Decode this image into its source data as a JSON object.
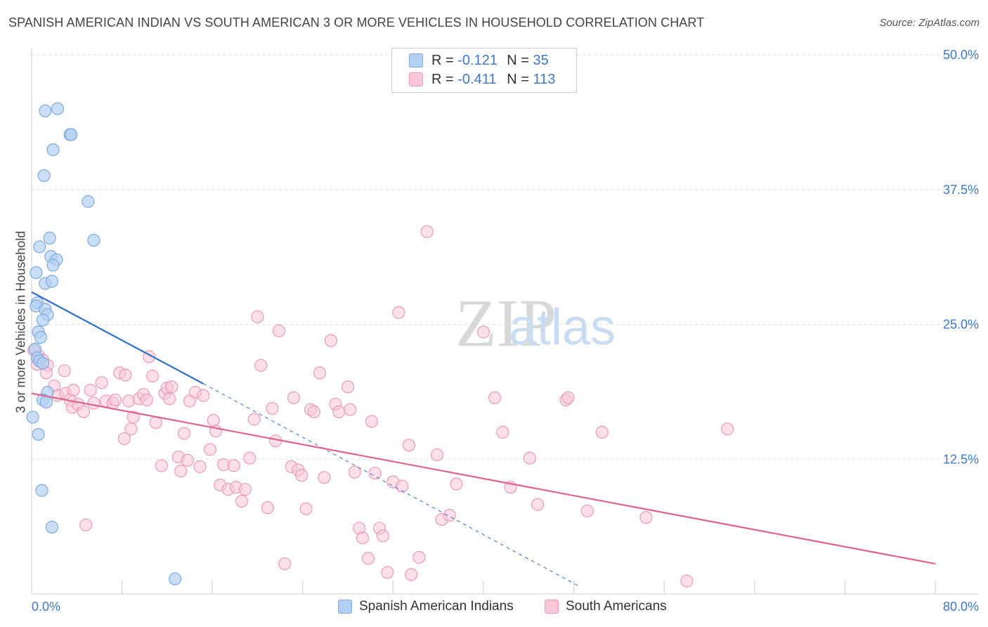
{
  "title": "SPANISH AMERICAN INDIAN VS SOUTH AMERICAN 3 OR MORE VEHICLES IN HOUSEHOLD CORRELATION CHART",
  "source": "Source: ZipAtlas.com",
  "watermark": {
    "zip": "ZIP",
    "atlas": "atlas"
  },
  "legend": {
    "r_label": "R =",
    "n_label": "N =",
    "rows": [
      {
        "r": "-0.121",
        "n": "35"
      },
      {
        "r": "-0.411",
        "n": "113"
      }
    ]
  },
  "bottom_legend": [
    "Spanish American Indians",
    "South Americans"
  ],
  "colors": {
    "blue_fill": "#b3d0f2",
    "blue_stroke": "#7fa9df",
    "blue_line": "#2e6fcc",
    "pink_fill": "#f8c6d5",
    "pink_stroke": "#eb9bb6",
    "pink_line": "#e0618e",
    "axis_text": "#3f78c6"
  },
  "chart_data": {
    "type": "scatter",
    "xlabel": "",
    "ylabel": "3 or more Vehicles in Household",
    "xlim": [
      0,
      80
    ],
    "ylim": [
      0,
      50
    ],
    "x_tick_labels": [
      "0.0%",
      "80.0%"
    ],
    "y_ticks": [
      12.5,
      25.0,
      37.5,
      50.0
    ],
    "y_tick_labels": [
      "12.5%",
      "25.0%",
      "37.5%",
      "50.0%"
    ],
    "grid": true,
    "series": [
      {
        "name": "Spanish American Indians",
        "r": -0.121,
        "n": 35,
        "trend": {
          "x0": 0,
          "y0": 28.0,
          "x1": 15.2,
          "y1": 19.5,
          "dashed_to_x": 48.5,
          "dashed_to_y": 0.7
        },
        "points": [
          [
            1.2,
            44.8
          ],
          [
            2.3,
            45.0
          ],
          [
            3.4,
            42.6
          ],
          [
            3.5,
            42.6
          ],
          [
            1.9,
            41.2
          ],
          [
            1.1,
            38.8
          ],
          [
            5.0,
            36.4
          ],
          [
            5.5,
            32.8
          ],
          [
            1.6,
            33.0
          ],
          [
            0.7,
            32.2
          ],
          [
            1.7,
            31.3
          ],
          [
            2.2,
            31.0
          ],
          [
            1.9,
            30.5
          ],
          [
            0.4,
            29.8
          ],
          [
            1.2,
            28.8
          ],
          [
            1.8,
            29.0
          ],
          [
            0.5,
            27.0
          ],
          [
            0.4,
            26.7
          ],
          [
            1.2,
            26.4
          ],
          [
            1.4,
            25.9
          ],
          [
            1.0,
            25.4
          ],
          [
            0.6,
            24.3
          ],
          [
            0.8,
            23.8
          ],
          [
            0.3,
            22.7
          ],
          [
            0.5,
            21.9
          ],
          [
            0.7,
            21.6
          ],
          [
            1.0,
            21.4
          ],
          [
            1.4,
            18.7
          ],
          [
            1.0,
            18.0
          ],
          [
            1.3,
            17.8
          ],
          [
            0.1,
            16.4
          ],
          [
            0.6,
            14.8
          ],
          [
            0.9,
            9.6
          ],
          [
            1.8,
            6.2
          ],
          [
            12.7,
            1.4
          ]
        ]
      },
      {
        "name": "South Americans",
        "r": -0.411,
        "n": 113,
        "trend": {
          "x0": 0,
          "y0": 18.6,
          "x1": 80,
          "y1": 2.8
        },
        "points": [
          [
            0.6,
            22.1
          ],
          [
            1.0,
            21.7
          ],
          [
            1.4,
            21.2
          ],
          [
            1.3,
            20.5
          ],
          [
            0.2,
            22.6
          ],
          [
            0.5,
            21.3
          ],
          [
            2.0,
            19.3
          ],
          [
            2.3,
            18.4
          ],
          [
            3.0,
            18.6
          ],
          [
            3.4,
            18.0
          ],
          [
            3.6,
            17.3
          ],
          [
            4.1,
            17.6
          ],
          [
            4.6,
            16.9
          ],
          [
            2.9,
            20.7
          ],
          [
            3.7,
            18.9
          ],
          [
            5.2,
            18.9
          ],
          [
            5.5,
            17.7
          ],
          [
            6.2,
            19.6
          ],
          [
            6.6,
            17.9
          ],
          [
            7.2,
            17.7
          ],
          [
            7.4,
            18.0
          ],
          [
            7.8,
            20.5
          ],
          [
            8.3,
            20.3
          ],
          [
            8.6,
            17.9
          ],
          [
            8.2,
            14.4
          ],
          [
            8.8,
            15.3
          ],
          [
            9.0,
            16.4
          ],
          [
            9.5,
            18.1
          ],
          [
            9.9,
            18.5
          ],
          [
            10.2,
            18.0
          ],
          [
            10.4,
            22.0
          ],
          [
            10.7,
            20.2
          ],
          [
            11.0,
            15.9
          ],
          [
            11.5,
            11.9
          ],
          [
            11.8,
            18.6
          ],
          [
            12.0,
            19.1
          ],
          [
            12.2,
            18.1
          ],
          [
            12.4,
            19.2
          ],
          [
            13.0,
            12.7
          ],
          [
            13.2,
            11.4
          ],
          [
            13.5,
            14.9
          ],
          [
            13.8,
            12.4
          ],
          [
            14.0,
            17.9
          ],
          [
            14.5,
            18.7
          ],
          [
            14.9,
            11.8
          ],
          [
            15.2,
            18.4
          ],
          [
            15.8,
            13.4
          ],
          [
            16.1,
            16.1
          ],
          [
            16.3,
            15.1
          ],
          [
            16.7,
            10.1
          ],
          [
            17.0,
            12.0
          ],
          [
            17.4,
            9.7
          ],
          [
            17.9,
            11.9
          ],
          [
            18.1,
            9.9
          ],
          [
            18.6,
            8.6
          ],
          [
            18.9,
            9.7
          ],
          [
            19.3,
            12.6
          ],
          [
            19.7,
            16.2
          ],
          [
            20.0,
            25.7
          ],
          [
            20.3,
            21.2
          ],
          [
            20.9,
            8.0
          ],
          [
            21.3,
            17.2
          ],
          [
            21.6,
            14.2
          ],
          [
            21.9,
            24.4
          ],
          [
            22.4,
            2.8
          ],
          [
            23.0,
            11.8
          ],
          [
            23.2,
            18.2
          ],
          [
            23.6,
            11.5
          ],
          [
            23.9,
            11.0
          ],
          [
            24.3,
            7.9
          ],
          [
            24.7,
            17.1
          ],
          [
            25.0,
            16.9
          ],
          [
            25.5,
            20.5
          ],
          [
            25.9,
            10.8
          ],
          [
            26.5,
            23.5
          ],
          [
            26.9,
            17.6
          ],
          [
            27.2,
            16.9
          ],
          [
            28.0,
            19.2
          ],
          [
            28.2,
            17.1
          ],
          [
            28.6,
            11.3
          ],
          [
            29.0,
            6.1
          ],
          [
            29.3,
            5.2
          ],
          [
            29.8,
            3.3
          ],
          [
            30.1,
            16.0
          ],
          [
            30.4,
            11.2
          ],
          [
            30.8,
            6.1
          ],
          [
            31.1,
            5.4
          ],
          [
            31.5,
            2.0
          ],
          [
            32.0,
            10.4
          ],
          [
            32.5,
            26.1
          ],
          [
            32.8,
            10.0
          ],
          [
            33.4,
            13.8
          ],
          [
            33.6,
            1.8
          ],
          [
            34.3,
            3.4
          ],
          [
            35.0,
            33.6
          ],
          [
            35.9,
            12.9
          ],
          [
            36.3,
            6.9
          ],
          [
            37.0,
            7.3
          ],
          [
            37.6,
            10.2
          ],
          [
            40.0,
            24.3
          ],
          [
            41.0,
            18.2
          ],
          [
            41.7,
            15.0
          ],
          [
            42.4,
            9.9
          ],
          [
            44.1,
            12.6
          ],
          [
            44.8,
            8.3
          ],
          [
            47.3,
            18.0
          ],
          [
            47.5,
            18.2
          ],
          [
            49.2,
            7.7
          ],
          [
            50.5,
            15.0
          ],
          [
            54.4,
            7.1
          ],
          [
            58.0,
            1.2
          ],
          [
            61.6,
            15.3
          ],
          [
            4.8,
            6.4
          ]
        ]
      }
    ]
  }
}
